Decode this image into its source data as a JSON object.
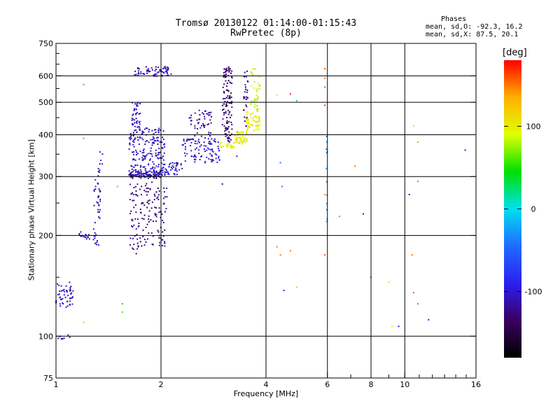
{
  "title": {
    "line1": "Tromsø 20130122 01:14:00-01:15:43",
    "line2": "RwPretec (8p)"
  },
  "stats": {
    "heading": "Phases",
    "line_o": "mean, sd,O: -92.3, 16.2",
    "line_x": "mean, sd,X:  87.5, 20.1"
  },
  "colorbar": {
    "label": "[deg]",
    "ticks": [
      "100",
      "0",
      "-100"
    ],
    "tick_values": [
      100,
      0,
      -100
    ],
    "range": [
      -180,
      180
    ],
    "colors": [
      "#000000",
      "#3a0060",
      "#2b1ff0",
      "#1f6bff",
      "#00e0f0",
      "#00e000",
      "#e0ff00",
      "#ffb000",
      "#ff0000"
    ]
  },
  "chart_data": {
    "type": "scatter",
    "title": "Tromsø 20130122 01:14:00-01:15:43\nRwPretec (8p)",
    "xlabel": "Frequency [MHz]",
    "ylabel": "Stationary phase Virtual Height [km]",
    "x_scale": "log",
    "y_scale": "log",
    "xlim": [
      1,
      16
    ],
    "ylim": [
      75,
      750
    ],
    "x_ticks": [
      1,
      2,
      4,
      6,
      8,
      10,
      16
    ],
    "x_tick_labels": [
      "1",
      "2",
      "4",
      "6",
      "8",
      "10",
      "16"
    ],
    "x_gridlines": [
      2,
      4,
      6,
      8,
      10
    ],
    "x_minor_ticks": [
      7,
      9,
      11,
      12,
      13,
      14,
      15
    ],
    "y_ticks": [
      75,
      100,
      200,
      300,
      400,
      500,
      600,
      750
    ],
    "y_tick_labels": [
      "75",
      "100",
      "200",
      "300",
      "400",
      "500",
      "600",
      "750"
    ],
    "y_gridlines": [
      100,
      200,
      300,
      400,
      500,
      600
    ],
    "y_minor_ticks": [
      150,
      250,
      350,
      450,
      550,
      650,
      700
    ],
    "grid": true,
    "color_value": "phase [deg]",
    "clusters": [
      {
        "x_range": [
          1.0,
          1.12
        ],
        "y_range": [
          120,
          145
        ],
        "n": 50,
        "phase": -105
      },
      {
        "x_range": [
          1.0,
          1.12
        ],
        "y_range": [
          98,
          102
        ],
        "n": 8,
        "phase": -100
      },
      {
        "x_range": [
          1.14,
          1.25
        ],
        "y_range": [
          195,
          205
        ],
        "n": 15,
        "phase": -110
      },
      {
        "x_range": [
          1.28,
          1.34
        ],
        "y_range": [
          185,
          300
        ],
        "n": 40,
        "phase": -110
      },
      {
        "x_range": [
          1.32,
          1.36
        ],
        "y_range": [
          300,
          365
        ],
        "n": 10,
        "phase": -105
      },
      {
        "x_range": [
          1.63,
          1.72
        ],
        "y_range": [
          175,
          290
        ],
        "n": 40,
        "phase": -120
      },
      {
        "x_range": [
          1.72,
          2.08
        ],
        "y_range": [
          185,
          290
        ],
        "n": 110,
        "phase": -125
      },
      {
        "x_range": [
          1.62,
          2.0
        ],
        "y_range": [
          296,
          310
        ],
        "n": 110,
        "phase": -110
      },
      {
        "x_range": [
          1.62,
          2.05
        ],
        "y_range": [
          310,
          420
        ],
        "n": 190,
        "phase": -105
      },
      {
        "x_range": [
          1.65,
          1.75
        ],
        "y_range": [
          420,
          500
        ],
        "n": 40,
        "phase": -105
      },
      {
        "x_range": [
          1.68,
          2.15
        ],
        "y_range": [
          598,
          640
        ],
        "n": 70,
        "phase": -110
      },
      {
        "x_range": [
          2.0,
          2.3
        ],
        "y_range": [
          303,
          330
        ],
        "n": 50,
        "phase": -105
      },
      {
        "x_range": [
          2.3,
          2.95
        ],
        "y_range": [
          330,
          390
        ],
        "n": 100,
        "phase": -100
      },
      {
        "x_range": [
          2.4,
          2.8
        ],
        "y_range": [
          390,
          475
        ],
        "n": 50,
        "phase": -115
      },
      {
        "x_range": [
          3.0,
          3.2
        ],
        "y_range": [
          380,
          640
        ],
        "n": 120,
        "phase": -130
      },
      {
        "x_range": [
          2.95,
          3.25
        ],
        "y_range": [
          365,
          380
        ],
        "n": 25,
        "phase": 100
      },
      {
        "x_range": [
          3.25,
          3.55
        ],
        "y_range": [
          375,
          410
        ],
        "n": 60,
        "phase": 100
      },
      {
        "x_range": [
          3.5,
          3.85
        ],
        "y_range": [
          410,
          470
        ],
        "n": 55,
        "phase": 100
      },
      {
        "x_range": [
          3.6,
          3.85
        ],
        "y_range": [
          470,
          630
        ],
        "n": 40,
        "phase": 85
      },
      {
        "x_range": [
          3.45,
          3.55
        ],
        "y_range": [
          420,
          620
        ],
        "n": 30,
        "phase": -125
      },
      {
        "x_range": [
          5.95,
          6.0
        ],
        "y_range": [
          200,
          400
        ],
        "n": 12,
        "phase": -30
      }
    ],
    "scattered_points": [
      {
        "x": 1.2,
        "y": 565,
        "phase": 50
      },
      {
        "x": 1.2,
        "y": 390,
        "phase": 150
      },
      {
        "x": 1.2,
        "y": 110,
        "phase": 120
      },
      {
        "x": 1.5,
        "y": 280,
        "phase": 60
      },
      {
        "x": 1.55,
        "y": 125,
        "phase": 50
      },
      {
        "x": 1.55,
        "y": 118,
        "phase": 60
      },
      {
        "x": 4.3,
        "y": 525,
        "phase": 100
      },
      {
        "x": 4.7,
        "y": 530,
        "phase": 170
      },
      {
        "x": 4.3,
        "y": 185,
        "phase": 150
      },
      {
        "x": 4.4,
        "y": 175,
        "phase": 150
      },
      {
        "x": 4.7,
        "y": 180,
        "phase": 150
      },
      {
        "x": 4.9,
        "y": 140,
        "phase": 120
      },
      {
        "x": 4.4,
        "y": 330,
        "phase": -40
      },
      {
        "x": 4.45,
        "y": 280,
        "phase": -40
      },
      {
        "x": 4.9,
        "y": 505,
        "phase": -20
      },
      {
        "x": 5.9,
        "y": 630,
        "phase": 160
      },
      {
        "x": 5.9,
        "y": 590,
        "phase": 150
      },
      {
        "x": 5.9,
        "y": 555,
        "phase": 160
      },
      {
        "x": 5.9,
        "y": 490,
        "phase": 170
      },
      {
        "x": 5.9,
        "y": 265,
        "phase": 150
      },
      {
        "x": 5.9,
        "y": 175,
        "phase": 160
      },
      {
        "x": 6.5,
        "y": 228,
        "phase": 30
      },
      {
        "x": 7.2,
        "y": 322,
        "phase": 150
      },
      {
        "x": 7.6,
        "y": 232,
        "phase": -100
      },
      {
        "x": 8.0,
        "y": 150,
        "phase": 150
      },
      {
        "x": 9.0,
        "y": 145,
        "phase": 110
      },
      {
        "x": 9.2,
        "y": 107,
        "phase": 100
      },
      {
        "x": 9.6,
        "y": 107,
        "phase": -100
      },
      {
        "x": 10.5,
        "y": 175,
        "phase": 150
      },
      {
        "x": 10.6,
        "y": 135,
        "phase": 160
      },
      {
        "x": 10.9,
        "y": 125,
        "phase": -20
      },
      {
        "x": 10.6,
        "y": 425,
        "phase": 80
      },
      {
        "x": 10.9,
        "y": 380,
        "phase": 60
      },
      {
        "x": 10.9,
        "y": 290,
        "phase": 40
      },
      {
        "x": 10.3,
        "y": 265,
        "phase": -100
      },
      {
        "x": 11.7,
        "y": 112,
        "phase": -100
      },
      {
        "x": 14.9,
        "y": 360,
        "phase": -100
      },
      {
        "x": 4.5,
        "y": 137,
        "phase": -100
      },
      {
        "x": 3.0,
        "y": 285,
        "phase": -120
      },
      {
        "x": 3.3,
        "y": 345,
        "phase": -110
      }
    ]
  }
}
